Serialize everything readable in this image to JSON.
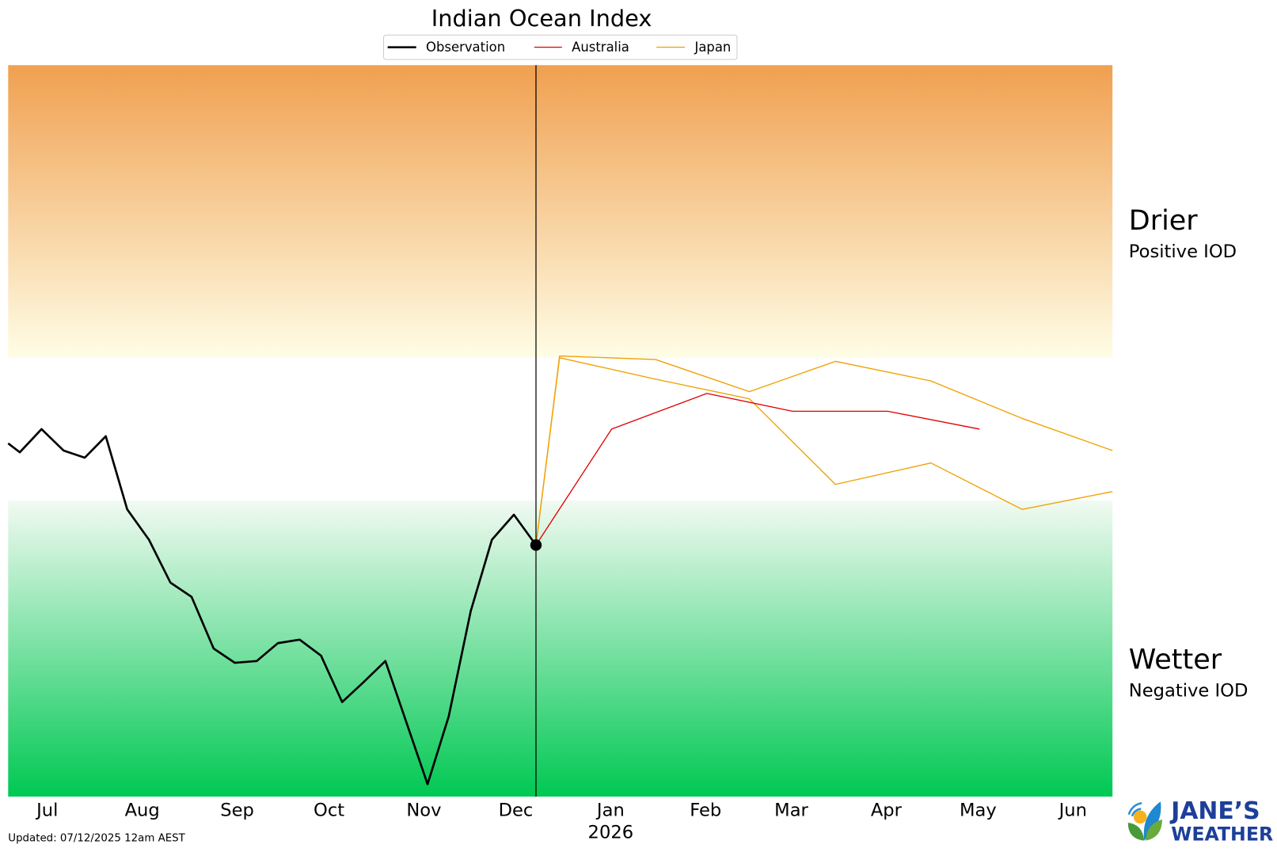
{
  "chart_data": {
    "type": "line",
    "title": "Indian Ocean Index",
    "xlabel": "",
    "ylabel": "",
    "x_units": "days relative to 1 Jul 2025",
    "xlim": [
      -12.8,
      347.9
    ],
    "ylim": [
      -2.06,
      2.04
    ],
    "grid": false,
    "legend_placement": "top-center",
    "x_ticks": [
      {
        "label": "Jul",
        "x": 0
      },
      {
        "label": "Aug",
        "x": 31
      },
      {
        "label": "Sep",
        "x": 62
      },
      {
        "label": "Oct",
        "x": 92
      },
      {
        "label": "Nov",
        "x": 123
      },
      {
        "label": "Dec",
        "x": 153
      },
      {
        "label": "Jan",
        "x": 184
      },
      {
        "label": "Feb",
        "x": 215
      },
      {
        "label": "Mar",
        "x": 243
      },
      {
        "label": "Apr",
        "x": 274
      },
      {
        "label": "May",
        "x": 304
      },
      {
        "label": "Jun",
        "x": 335
      }
    ],
    "year_label": "2026",
    "year_label_x": 184,
    "current_x": 159.6,
    "bands": {
      "positive_threshold": 0.4,
      "negative_threshold": -0.4,
      "top_color": "#f0a050",
      "top_light": "#fffde6",
      "bottom_color": "#00c853",
      "bottom_light": "#f2faf2"
    },
    "series": [
      {
        "name": "Observation",
        "color": "#000000",
        "x": [
          -12.8,
          -9.0,
          -1.9,
          5.3,
          12.2,
          19.1,
          26.1,
          33.2,
          40.2,
          47.1,
          54.3,
          61.2,
          68.4,
          75.3,
          82.4,
          89.4,
          96.3,
          103.2,
          110.4,
          124.2,
          131.1,
          138.3,
          145.2,
          152.4,
          159.6
        ],
        "values": [
          -0.08,
          -0.13,
          0.0,
          -0.12,
          -0.16,
          -0.04,
          -0.45,
          -0.62,
          -0.86,
          -0.94,
          -1.23,
          -1.31,
          -1.3,
          -1.2,
          -1.18,
          -1.27,
          -1.53,
          -1.42,
          -1.3,
          -1.99,
          -1.61,
          -1.02,
          -0.62,
          -0.48,
          -0.65
        ]
      },
      {
        "name": "Australia",
        "color": "#e00000",
        "x": [
          159.6,
          184.3,
          215.4,
          243.4,
          274.5,
          304.5
        ],
        "values": [
          -0.65,
          0.0,
          0.2,
          0.1,
          0.1,
          0.0
        ]
      },
      {
        "name": "Japan",
        "color": "#f0a000",
        "x": [
          159.6,
          167.3,
          198.7,
          229.3,
          257.4,
          288.6,
          318.4,
          347.9
        ],
        "values": [
          -0.65,
          0.41,
          0.39,
          0.21,
          0.38,
          0.27,
          0.06,
          -0.12
        ]
      },
      {
        "name": "Japan",
        "color": "#f0a000",
        "legend": false,
        "x": [
          159.6,
          167.3,
          198.7,
          229.3,
          257.4,
          288.6,
          318.4,
          347.9
        ],
        "values": [
          -0.65,
          0.4,
          0.28,
          0.17,
          -0.31,
          -0.19,
          -0.45,
          -0.35
        ]
      }
    ],
    "legend": [
      "Observation",
      "Australia",
      "Japan"
    ],
    "annotations": {
      "drier": "Drier",
      "positive": "Positive IOD",
      "wetter": "Wetter",
      "negative": "Negative IOD"
    }
  },
  "footer": {
    "updated": "Updated: 07/12/2025 12am AEST",
    "logo_line1": "JANE’S",
    "logo_line2": "WEATHER",
    "logo_color": "#1e3f99"
  }
}
